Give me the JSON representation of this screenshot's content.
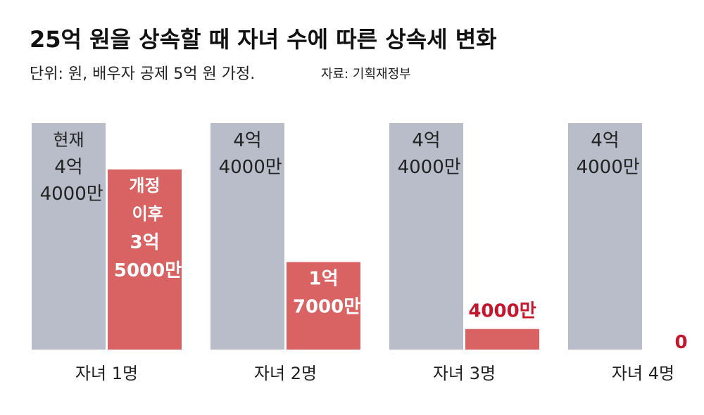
{
  "chart_data": {
    "type": "bar",
    "title": "25억 원을 상속할 때 자녀 수에 따른 상속세 변화",
    "subtitle": "단위: 원, 배우자 공제 5억 원 가정.",
    "source": "자료: 기획재정부",
    "categories": [
      "자녀 1명",
      "자녀 2명",
      "자녀 3명",
      "자녀 4명"
    ],
    "series": [
      {
        "name": "현재",
        "color": "#b8bdc9",
        "values": [
          44000,
          44000,
          44000,
          44000
        ],
        "value_labels": [
          "4억 4000만",
          "4억 4000만",
          "4억 4000만",
          "4억 4000만"
        ]
      },
      {
        "name": "개정 이후",
        "color": "#d96262",
        "values": [
          35000,
          17000,
          4000,
          0
        ],
        "value_labels": [
          "3억 5000만",
          "1억 7000만",
          "4000만",
          "0"
        ]
      }
    ]
  }
}
